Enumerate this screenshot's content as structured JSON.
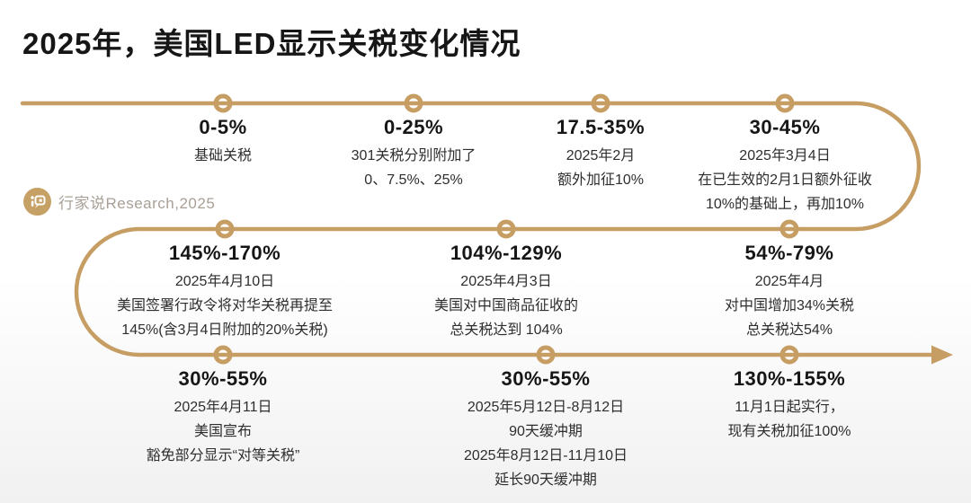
{
  "title": "2025年，美国LED显示关税变化情况",
  "watermark": {
    "icon": "chat-bubble-logo",
    "label": "行家说Research,2025"
  },
  "colors": {
    "gold_line": "#C69D62",
    "title_text": "#161616",
    "body_text": "#2e2e2e",
    "watermark_text": "#A8A096",
    "background_bottom": "#f1f1f1"
  },
  "timeline": {
    "shape": "serpentine-3-rows-with-arrow-end",
    "nodes": [
      {
        "range": "0-5%",
        "lines": [
          "基础关税"
        ]
      },
      {
        "range": "0-25%",
        "lines": [
          "301关税分别附加了",
          "0、7.5%、25%"
        ]
      },
      {
        "range": "17.5-35%",
        "lines": [
          "2025年2月",
          "额外加征10%"
        ]
      },
      {
        "range": "30-45%",
        "lines": [
          "2025年3月4日",
          "在已生效的2月1日额外征收",
          "10%的基础上，再加10%"
        ]
      },
      {
        "range": "145%-170%",
        "lines": [
          "2025年4月10日",
          "美国签署行政令将对华关税再提至",
          "145%(含3月4日附加的20%关税)"
        ]
      },
      {
        "range": "104%-129%",
        "lines": [
          "2025年4月3日",
          "美国对中国商品征收的",
          "总关税达到 104%"
        ]
      },
      {
        "range": "54%-79%",
        "lines": [
          "2025年4月",
          "对中国增加34%关税",
          "总关税达54%"
        ]
      },
      {
        "range": "30%-55%",
        "lines": [
          "2025年4月11日",
          "美国宣布",
          "豁免部分显示“对等关税”"
        ]
      },
      {
        "range": "30%-55%",
        "lines": [
          "2025年5月12日-8月12日",
          "90天缓冲期",
          "2025年8月12日-11月10日",
          "延长90天缓冲期"
        ]
      },
      {
        "range": "130%-155%",
        "lines": [
          "11月1日起实行，",
          "现有关税加征100%"
        ]
      }
    ]
  }
}
